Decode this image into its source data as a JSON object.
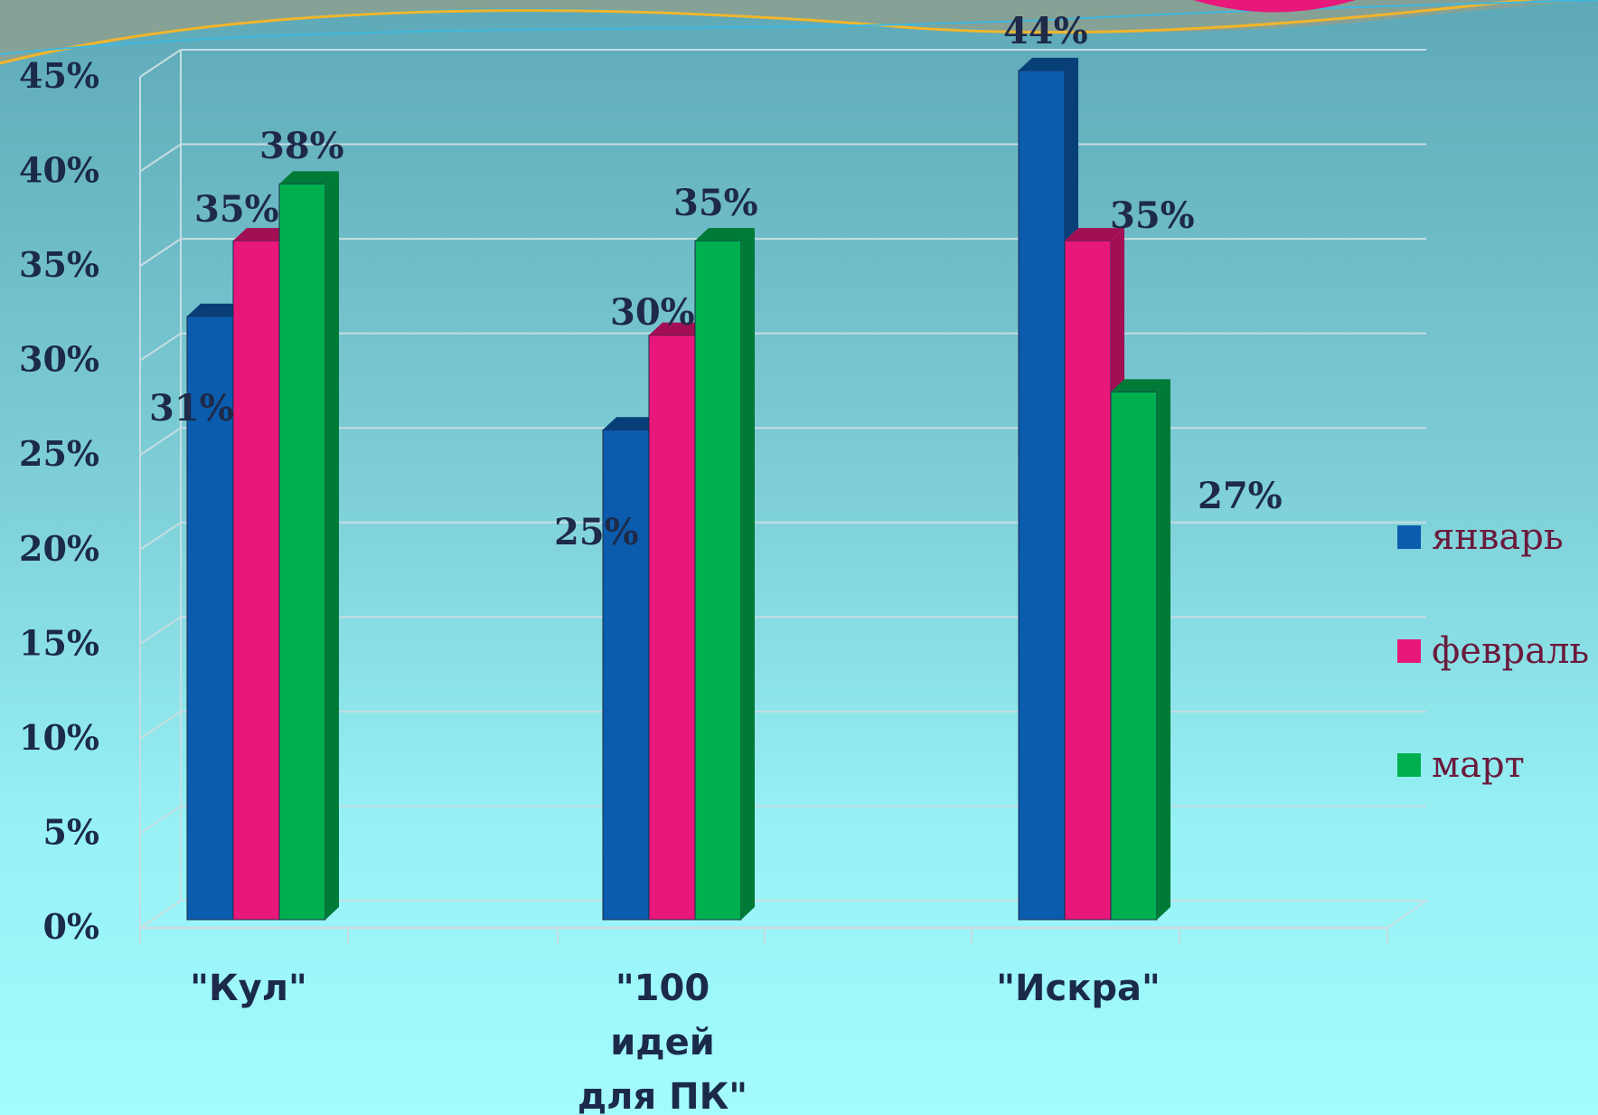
{
  "chart_data": {
    "type": "bar",
    "categories": [
      "\"Кул\"",
      "\"100 идей для ПК\"",
      "\"Искра\""
    ],
    "category_lines": [
      [
        "\"Кул\""
      ],
      [
        "\"100",
        "идей",
        "для ПК\""
      ],
      [
        "\"Искра\""
      ]
    ],
    "series": [
      {
        "name": "январь",
        "values": [
          31,
          25,
          44
        ],
        "color": "#0b5cad",
        "side_color": "#083f79"
      },
      {
        "name": "февраль",
        "values": [
          35,
          30,
          35
        ],
        "color": "#e8177a",
        "side_color": "#a30f55"
      },
      {
        "name": "март",
        "values": [
          38,
          35,
          27
        ],
        "color": "#00b04f",
        "side_color": "#007a37"
      }
    ],
    "data_labels": [
      [
        "31%",
        "25%",
        "44%"
      ],
      [
        "35%",
        "30%",
        "35%"
      ],
      [
        "38%",
        "35%",
        "27%"
      ]
    ],
    "highlight_label_color": "#8b0d0d",
    "ylim": [
      0,
      45
    ],
    "yticks": [
      "0%",
      "5%",
      "10%",
      "15%",
      "20%",
      "25%",
      "30%",
      "35%",
      "40%",
      "45%"
    ],
    "ytick_values": [
      0,
      5,
      10,
      15,
      20,
      25,
      30,
      35,
      40,
      45
    ],
    "grid": true,
    "legend_position": "right",
    "title": "",
    "xlabel": "",
    "ylabel": ""
  }
}
